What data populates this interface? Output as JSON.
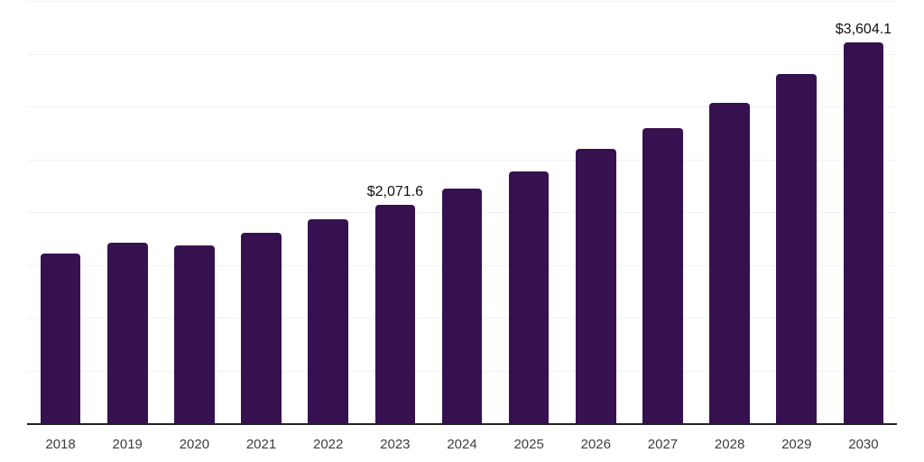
{
  "chart_data": {
    "type": "bar",
    "title": "",
    "xlabel": "",
    "ylabel": "",
    "categories": [
      "2018",
      "2019",
      "2020",
      "2021",
      "2022",
      "2023",
      "2024",
      "2025",
      "2026",
      "2027",
      "2028",
      "2029",
      "2030"
    ],
    "values": [
      1611,
      1711,
      1688,
      1801,
      1935,
      2071.6,
      2223,
      2388,
      2596,
      2793,
      3032,
      3309,
      3604.1
    ],
    "visible_value_labels": {
      "2023": "$2,071.6",
      "2030": "$3,604.1"
    },
    "value_prefix": "$",
    "ylim": [
      0,
      4000
    ],
    "gridline_step": 500,
    "grid": "horizontal-only",
    "legend_position": "none",
    "y_tick_labels_visible": false
  },
  "colors": {
    "background": "#ffffff",
    "bar": "#361150",
    "gridline": "#f2f2f2",
    "axis_line": "#212121",
    "x_tick_label": "#3d3d3d",
    "value_label": "#111111"
  }
}
